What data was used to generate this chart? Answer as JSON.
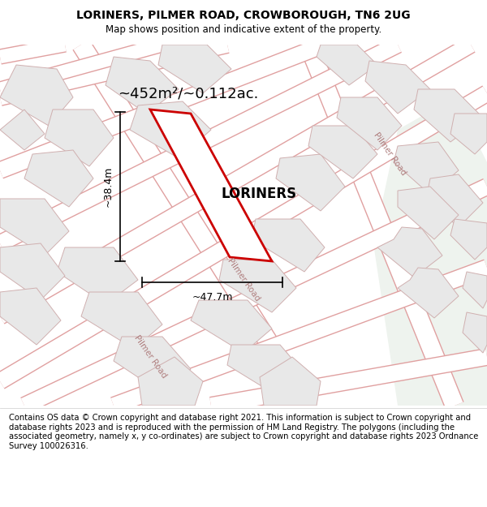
{
  "title": "LORINERS, PILMER ROAD, CROWBOROUGH, TN6 2UG",
  "subtitle": "Map shows position and indicative extent of the property.",
  "footer": "Contains OS data © Crown copyright and database right 2021. This information is subject to Crown copyright and database rights 2023 and is reproduced with the permission of HM Land Registry. The polygons (including the associated geometry, namely x, y co-ordinates) are subject to Crown copyright and database rights 2023 Ordnance Survey 100026316.",
  "area_label": "~452m²/~0.112ac.",
  "property_name": "LORINERS",
  "width_label": "~47.7m",
  "height_label": "~38.4m",
  "map_bg": "#fafafa",
  "green_area_color": "#eef3ee",
  "plot_fill": "white",
  "plot_edge": "#cc0000",
  "road_fill": "white",
  "road_outline": "#e8a0a0",
  "block_fill": "#e8e8e8",
  "block_edge": "#d0b0b0",
  "road_label_color": "#b08080",
  "title_fontsize": 10,
  "subtitle_fontsize": 8.5,
  "footer_fontsize": 7.2
}
